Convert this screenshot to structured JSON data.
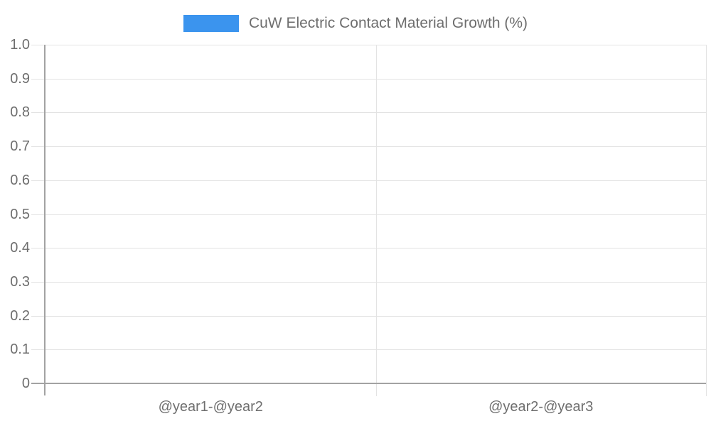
{
  "legend": {
    "label": "CuW Electric Contact Material Growth (%)"
  },
  "chart_data": {
    "type": "bar",
    "title": "",
    "categories": [
      "@year1-@year2",
      "@year2-@year3"
    ],
    "series": [
      {
        "name": "CuW Electric Contact Material Growth (%)",
        "values": [
          0,
          0
        ]
      }
    ],
    "xlabel": "",
    "ylabel": "",
    "ylim": [
      0,
      1
    ],
    "ytick_labels": [
      "0",
      "0.1",
      "0.2",
      "0.3",
      "0.4",
      "0.5",
      "0.6",
      "0.7",
      "0.8",
      "0.9",
      "1.0"
    ],
    "grid": true,
    "legend_position": "top"
  },
  "colors": {
    "bar": "#3b94ee",
    "axis_line": "#a3a3a3",
    "grid_line": "#e3e3e3",
    "text": "#6e6e6e"
  }
}
